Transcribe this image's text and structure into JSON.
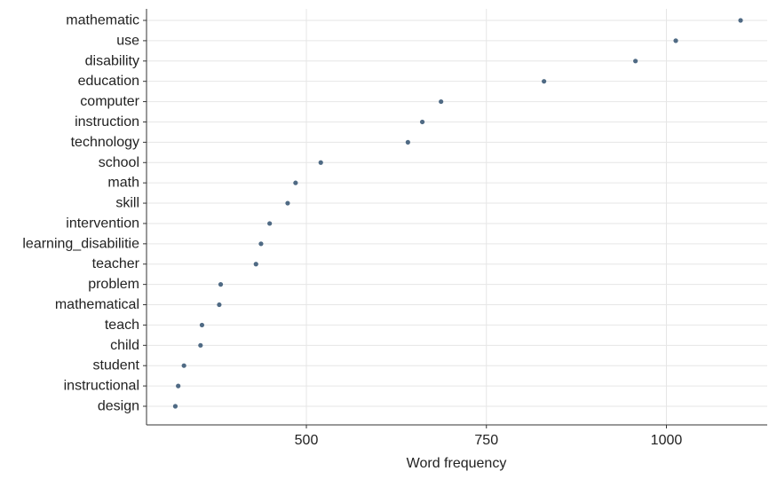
{
  "chart_data": {
    "type": "scatter",
    "title": "",
    "xlabel": "Word frequency",
    "ylabel": "",
    "xlim": [
      278,
      1140
    ],
    "x_ticks": [
      500,
      750,
      1000
    ],
    "grid": true,
    "legend": "none",
    "colors": {
      "point": "#4F6A84",
      "grid": "#E6E6E6",
      "axis": "#333333"
    },
    "categories": [
      "mathematic",
      "use",
      "disability",
      "education",
      "computer",
      "instruction",
      "technology",
      "school",
      "math",
      "skill",
      "intervention",
      "learning_disabilitie",
      "teacher",
      "problem",
      "mathematical",
      "teach",
      "child",
      "student",
      "instructional",
      "design"
    ],
    "values": [
      1103,
      1013,
      957,
      830,
      687,
      661,
      641,
      520,
      485,
      474,
      449,
      437,
      430,
      381,
      379,
      355,
      353,
      330,
      322,
      318
    ]
  }
}
